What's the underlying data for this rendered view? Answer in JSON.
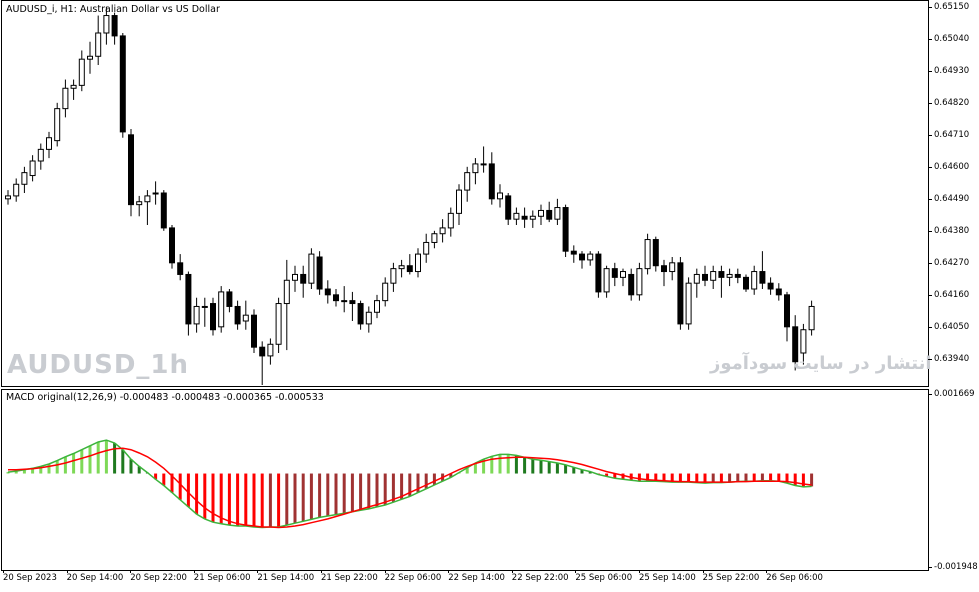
{
  "chart": {
    "title": "AUDUSD_i, H1:  Australian Dollar vs US Dollar",
    "watermark_symbol": "AUDUSD_1h",
    "watermark_site": "انتشار در سایت سودآموز",
    "price_ticks": [
      "0.65150",
      "0.65040",
      "0.64930",
      "0.64820",
      "0.64710",
      "0.64600",
      "0.64490",
      "0.64380",
      "0.64270",
      "0.64160",
      "0.64050",
      "0.63940"
    ],
    "time_ticks": [
      "20 Sep 2023",
      "20 Sep 14:00",
      "20 Sep 22:00",
      "21 Sep 06:00",
      "21 Sep 14:00",
      "21 Sep 22:00",
      "22 Sep 06:00",
      "22 Sep 14:00",
      "22 Sep 22:00",
      "25 Sep 06:00",
      "25 Sep 14:00",
      "25 Sep 22:00",
      "26 Sep 06:00"
    ]
  },
  "macd": {
    "title": "MACD original(12,26,9) -0.000483 -0.000483 -0.000365 -0.000533",
    "ticks": [
      "0.001669",
      "-0.001948"
    ],
    "colors": {
      "bull_up": "#7ed957",
      "bull_down": "#1f7a1f",
      "bear_down": "#ff0000",
      "bear_up": "#a03232",
      "signal": "#ff0000",
      "macd_line": "#3cb43c"
    }
  },
  "chart_data": {
    "type": "candlestick",
    "y_range": [
      0.6385,
      0.6517
    ],
    "candles": [
      [
        0.6449,
        0.6452,
        0.6447,
        0.645
      ],
      [
        0.645,
        0.6456,
        0.6448,
        0.6454
      ],
      [
        0.6454,
        0.646,
        0.6451,
        0.6458
      ],
      [
        0.6457,
        0.6464,
        0.6455,
        0.6462
      ],
      [
        0.6462,
        0.6468,
        0.6459,
        0.6466
      ],
      [
        0.6466,
        0.6472,
        0.6463,
        0.647
      ],
      [
        0.6469,
        0.6482,
        0.6467,
        0.648
      ],
      [
        0.648,
        0.649,
        0.6477,
        0.6487
      ],
      [
        0.6487,
        0.649,
        0.6483,
        0.6488
      ],
      [
        0.6488,
        0.65,
        0.6486,
        0.6497
      ],
      [
        0.6497,
        0.6503,
        0.6492,
        0.6498
      ],
      [
        0.6498,
        0.6512,
        0.6495,
        0.6506
      ],
      [
        0.6506,
        0.6515,
        0.6502,
        0.6512
      ],
      [
        0.6512,
        0.6513,
        0.6502,
        0.6505
      ],
      [
        0.6505,
        0.6506,
        0.647,
        0.6472
      ],
      [
        0.6471,
        0.6473,
        0.6443,
        0.6447
      ],
      [
        0.6447,
        0.645,
        0.6443,
        0.6448
      ],
      [
        0.6448,
        0.6452,
        0.644,
        0.645
      ],
      [
        0.6451,
        0.6455,
        0.6447,
        0.6451
      ],
      [
        0.6451,
        0.6452,
        0.6438,
        0.6439
      ],
      [
        0.6439,
        0.644,
        0.6425,
        0.6427
      ],
      [
        0.6427,
        0.643,
        0.6421,
        0.6423
      ],
      [
        0.6423,
        0.6424,
        0.6402,
        0.6406
      ],
      [
        0.6406,
        0.6415,
        0.6403,
        0.6412
      ],
      [
        0.6412,
        0.6415,
        0.6405,
        0.6412
      ],
      [
        0.6413,
        0.6415,
        0.6402,
        0.6404
      ],
      [
        0.6405,
        0.6419,
        0.6403,
        0.6417
      ],
      [
        0.6417,
        0.6418,
        0.641,
        0.6412
      ],
      [
        0.6412,
        0.6414,
        0.6404,
        0.6406
      ],
      [
        0.6407,
        0.6414,
        0.6404,
        0.6409
      ],
      [
        0.6409,
        0.6411,
        0.6396,
        0.6398
      ],
      [
        0.6398,
        0.64,
        0.6385,
        0.6395
      ],
      [
        0.6395,
        0.6401,
        0.6392,
        0.6399
      ],
      [
        0.6399,
        0.6415,
        0.6396,
        0.6413
      ],
      [
        0.6413,
        0.6428,
        0.6397,
        0.6421
      ],
      [
        0.6421,
        0.6426,
        0.6417,
        0.6423
      ],
      [
        0.6423,
        0.6426,
        0.6415,
        0.642
      ],
      [
        0.642,
        0.6432,
        0.6418,
        0.643
      ],
      [
        0.6429,
        0.6431,
        0.6416,
        0.6418
      ],
      [
        0.6418,
        0.6421,
        0.6413,
        0.6416
      ],
      [
        0.6416,
        0.6418,
        0.6412,
        0.6414
      ],
      [
        0.6414,
        0.6419,
        0.641,
        0.6414
      ],
      [
        0.6414,
        0.6417,
        0.6407,
        0.6413
      ],
      [
        0.6413,
        0.6414,
        0.6404,
        0.6406
      ],
      [
        0.6406,
        0.6412,
        0.6403,
        0.641
      ],
      [
        0.641,
        0.6416,
        0.6408,
        0.6414
      ],
      [
        0.6414,
        0.6422,
        0.6412,
        0.642
      ],
      [
        0.642,
        0.6427,
        0.6417,
        0.6425
      ],
      [
        0.6425,
        0.6428,
        0.6422,
        0.6426
      ],
      [
        0.6426,
        0.643,
        0.6423,
        0.6424
      ],
      [
        0.6424,
        0.6432,
        0.6422,
        0.643
      ],
      [
        0.643,
        0.6437,
        0.6427,
        0.6434
      ],
      [
        0.6434,
        0.6438,
        0.6432,
        0.6437
      ],
      [
        0.6437,
        0.6442,
        0.6434,
        0.6439
      ],
      [
        0.6439,
        0.6446,
        0.6436,
        0.6444
      ],
      [
        0.6444,
        0.6454,
        0.644,
        0.6452
      ],
      [
        0.6452,
        0.646,
        0.6448,
        0.6458
      ],
      [
        0.6458,
        0.6463,
        0.6454,
        0.6461
      ],
      [
        0.6461,
        0.6467,
        0.6458,
        0.6461
      ],
      [
        0.6461,
        0.6465,
        0.6447,
        0.6449
      ],
      [
        0.6449,
        0.6454,
        0.6446,
        0.6451
      ],
      [
        0.645,
        0.6451,
        0.644,
        0.6442
      ],
      [
        0.6442,
        0.6446,
        0.644,
        0.6444
      ],
      [
        0.6443,
        0.6446,
        0.6439,
        0.6442
      ],
      [
        0.6442,
        0.6445,
        0.6439,
        0.6443
      ],
      [
        0.6443,
        0.6447,
        0.644,
        0.6445
      ],
      [
        0.6445,
        0.6448,
        0.6441,
        0.6442
      ],
      [
        0.6442,
        0.6449,
        0.644,
        0.6446
      ],
      [
        0.6446,
        0.6447,
        0.6429,
        0.6431
      ],
      [
        0.6431,
        0.6433,
        0.6427,
        0.643
      ],
      [
        0.643,
        0.6431,
        0.6425,
        0.6428
      ],
      [
        0.6428,
        0.6431,
        0.6426,
        0.643
      ],
      [
        0.643,
        0.6431,
        0.6415,
        0.6417
      ],
      [
        0.6417,
        0.6426,
        0.6415,
        0.6425
      ],
      [
        0.6425,
        0.6427,
        0.6419,
        0.6422
      ],
      [
        0.6422,
        0.6425,
        0.6419,
        0.6424
      ],
      [
        0.6423,
        0.6425,
        0.6414,
        0.6416
      ],
      [
        0.6416,
        0.6427,
        0.6414,
        0.6425
      ],
      [
        0.6425,
        0.6437,
        0.6423,
        0.6435
      ],
      [
        0.6435,
        0.6436,
        0.6424,
        0.6426
      ],
      [
        0.6426,
        0.6428,
        0.6419,
        0.6424
      ],
      [
        0.6424,
        0.6429,
        0.6421,
        0.6427
      ],
      [
        0.6427,
        0.6429,
        0.6404,
        0.6406
      ],
      [
        0.6406,
        0.6422,
        0.6404,
        0.642
      ],
      [
        0.642,
        0.6425,
        0.6415,
        0.6423
      ],
      [
        0.6423,
        0.6426,
        0.6419,
        0.6421
      ],
      [
        0.6421,
        0.6426,
        0.6418,
        0.6424
      ],
      [
        0.6424,
        0.6426,
        0.6415,
        0.6422
      ],
      [
        0.6422,
        0.6425,
        0.6419,
        0.6423
      ],
      [
        0.6423,
        0.6425,
        0.642,
        0.6422
      ],
      [
        0.6422,
        0.6423,
        0.6417,
        0.6418
      ],
      [
        0.6418,
        0.6426,
        0.6416,
        0.6424
      ],
      [
        0.6424,
        0.6431,
        0.6418,
        0.642
      ],
      [
        0.642,
        0.6422,
        0.6416,
        0.6418
      ],
      [
        0.6418,
        0.642,
        0.6414,
        0.6416
      ],
      [
        0.6416,
        0.6417,
        0.64,
        0.6405
      ],
      [
        0.6405,
        0.6409,
        0.639,
        0.6393
      ],
      [
        0.6396,
        0.6406,
        0.6392,
        0.6404
      ],
      [
        0.6404,
        0.6414,
        0.6402,
        0.6412
      ]
    ],
    "macd_histogram": [
      3e-05,
      5e-05,
      8e-05,
      0.00011,
      0.00015,
      0.0002,
      0.00027,
      0.00035,
      0.00042,
      0.0005,
      0.00058,
      0.00066,
      0.0007,
      0.00064,
      0.0005,
      0.0003,
      0.00015,
      2e-05,
      -0.00012,
      -0.00025,
      -0.0004,
      -0.00055,
      -0.0007,
      -0.00085,
      -0.00095,
      -0.00102,
      -0.00105,
      -0.00108,
      -0.0011,
      -0.0011,
      -0.00112,
      -0.00113,
      -0.00112,
      -0.00112,
      -0.00108,
      -0.00104,
      -0.001,
      -0.00096,
      -0.00092,
      -0.00089,
      -0.00086,
      -0.00083,
      -0.0008,
      -0.00077,
      -0.00074,
      -0.0007,
      -0.00066,
      -0.0006,
      -0.00054,
      -0.00048,
      -0.0004,
      -0.00032,
      -0.00024,
      -0.00016,
      -8e-05,
      2e-05,
      0.00012,
      0.00022,
      0.0003,
      0.00036,
      0.0004,
      0.0004,
      0.00038,
      0.00034,
      0.0003,
      0.00028,
      0.00025,
      0.00022,
      0.00018,
      0.00013,
      8e-05,
      4e-05,
      -2e-05,
      -6e-05,
      -0.0001,
      -0.00012,
      -0.00014,
      -0.00016,
      -0.00016,
      -0.00016,
      -0.00017,
      -0.00018,
      -0.00018,
      -0.00018,
      -0.00019,
      -0.0002,
      -0.00019,
      -0.00019,
      -0.00018,
      -0.00017,
      -0.00016,
      -0.00016,
      -0.00015,
      -0.00015,
      -0.00016,
      -0.0002,
      -0.00025,
      -0.00028,
      -0.00027
    ],
    "macd_signal": [
      8e-05,
      8e-05,
      9e-05,
      0.0001,
      0.00012,
      0.00015,
      0.00018,
      0.00022,
      0.00027,
      0.00032,
      0.00037,
      0.00043,
      0.00048,
      0.00052,
      0.00053,
      0.0005,
      0.00043,
      0.00035,
      0.00024,
      0.00011,
      -5e-05,
      -0.00022,
      -0.0004,
      -0.00057,
      -0.00072,
      -0.00084,
      -0.00093,
      -0.001,
      -0.00105,
      -0.00108,
      -0.0011,
      -0.00112,
      -0.00112,
      -0.00113,
      -0.00112,
      -0.0011,
      -0.00107,
      -0.00103,
      -0.00099,
      -0.00095,
      -0.0009,
      -0.00085,
      -0.0008,
      -0.00075,
      -0.0007,
      -0.00065,
      -0.0006,
      -0.00054,
      -0.00048,
      -0.0004,
      -0.00032,
      -0.00024,
      -0.00016,
      -8e-05,
      0.0,
      8e-05,
      0.00015,
      0.00021,
      0.00026,
      0.0003,
      0.00032,
      0.00033,
      0.00034,
      0.00034,
      0.00033,
      0.00032,
      0.00031,
      0.00029,
      0.00026,
      0.00023,
      0.00019,
      0.00014,
      9e-05,
      4e-05,
      0.0,
      -4e-05,
      -8e-05,
      -0.00011,
      -0.00013,
      -0.00014,
      -0.00015,
      -0.00016,
      -0.00017,
      -0.00017,
      -0.00018,
      -0.00018,
      -0.00018,
      -0.00018,
      -0.00018,
      -0.00017,
      -0.00017,
      -0.00016,
      -0.00016,
      -0.00016,
      -0.00016,
      -0.00017,
      -0.00019,
      -0.00022,
      -0.00024
    ],
    "macd_y_range": [
      -0.002,
      0.00175
    ]
  }
}
